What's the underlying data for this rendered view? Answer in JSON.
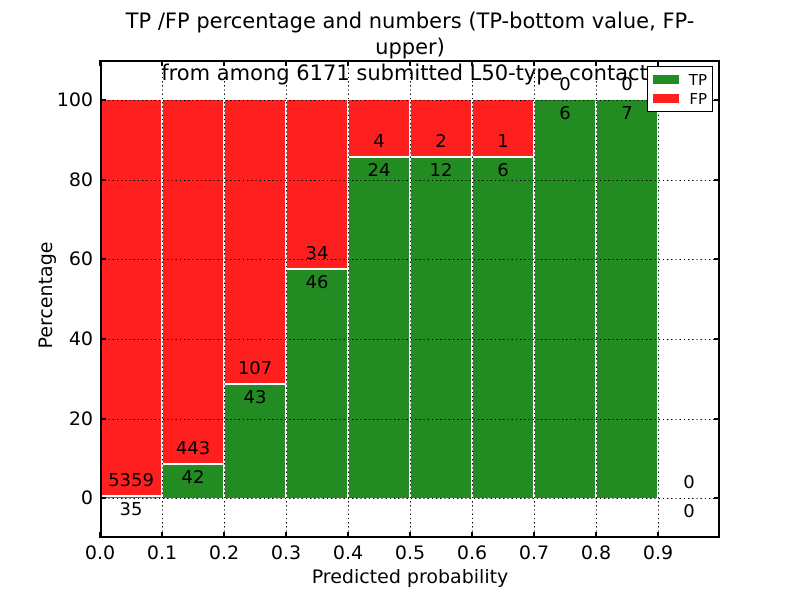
{
  "chart_data": {
    "type": "bar",
    "stacking": "percentage",
    "title_lines": [
      "TP /FP percentage and numbers (TP-bottom value, FP-upper)",
      "from among 6171 submitted L50-type contacts"
    ],
    "total_contacts": 6171,
    "xlabel": "Predicted probability",
    "ylabel": "Percentage",
    "xlim": [
      0.0,
      1.0
    ],
    "ylim": [
      -10,
      110
    ],
    "x_ticks": [
      "0.0",
      "0.1",
      "0.2",
      "0.3",
      "0.4",
      "0.5",
      "0.6",
      "0.7",
      "0.8",
      "0.9"
    ],
    "x_tick_values": [
      0.0,
      0.1,
      0.2,
      0.3,
      0.4,
      0.5,
      0.6,
      0.7,
      0.8,
      0.9
    ],
    "y_ticks": [
      "0",
      "20",
      "40",
      "60",
      "80",
      "100"
    ],
    "y_tick_values": [
      0,
      20,
      40,
      60,
      80,
      100
    ],
    "grid": true,
    "annotation_scheme": "TP-bottom value, FP-upper",
    "bins": [
      {
        "range": [
          0.0,
          0.1
        ],
        "tp": 35,
        "fp": 5359
      },
      {
        "range": [
          0.1,
          0.2
        ],
        "tp": 42,
        "fp": 443
      },
      {
        "range": [
          0.2,
          0.3
        ],
        "tp": 43,
        "fp": 107
      },
      {
        "range": [
          0.3,
          0.4
        ],
        "tp": 46,
        "fp": 34
      },
      {
        "range": [
          0.4,
          0.5
        ],
        "tp": 24,
        "fp": 4
      },
      {
        "range": [
          0.5,
          0.6
        ],
        "tp": 12,
        "fp": 2
      },
      {
        "range": [
          0.6,
          0.7
        ],
        "tp": 6,
        "fp": 1
      },
      {
        "range": [
          0.7,
          0.8
        ],
        "tp": 6,
        "fp": 0
      },
      {
        "range": [
          0.8,
          0.9
        ],
        "tp": 7,
        "fp": 0
      },
      {
        "range": [
          0.9,
          1.0
        ],
        "tp": 0,
        "fp": 0
      }
    ],
    "legend": {
      "position": "upper right",
      "entries": [
        {
          "label": "TP",
          "color": "#228b22"
        },
        {
          "label": "FP",
          "color": "#ff1f1f"
        }
      ]
    },
    "colors": {
      "tp": "#228b22",
      "fp": "#ff1f1f",
      "grid": "#000000",
      "text": "#000000",
      "background": "#ffffff"
    }
  }
}
